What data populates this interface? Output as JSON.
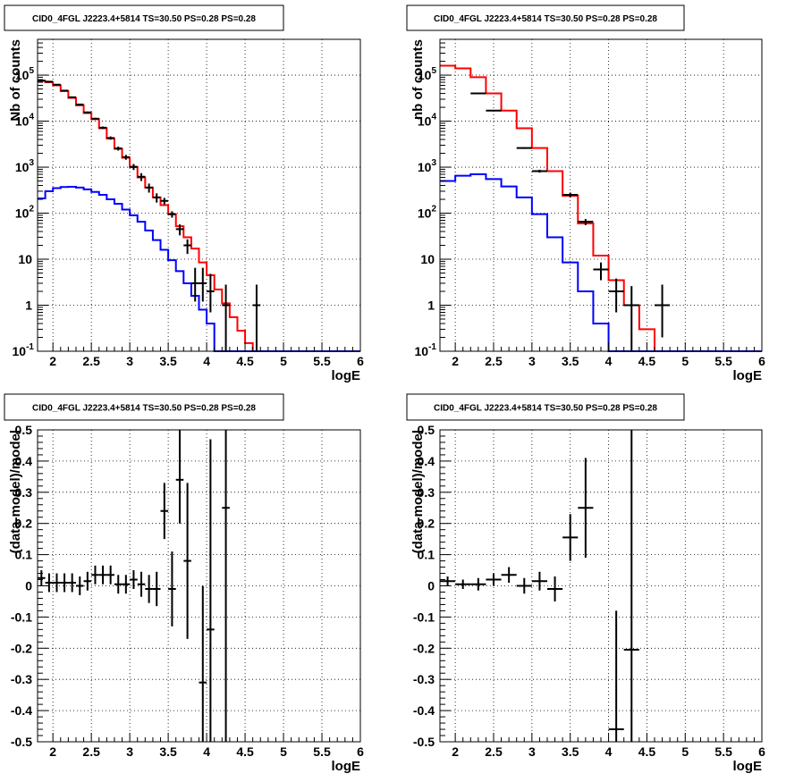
{
  "colors": {
    "model": "#ff0000",
    "component": "#0000ff",
    "data": "#000000",
    "grid": "#000000"
  },
  "chart_data": [
    {
      "type": "line",
      "title": "CID0_4FGL J2223.4+5814 TS=30.50 PS=0.28 PS=0.28",
      "xlabel": "logE",
      "ylabel": "Nb of counts",
      "xlim": [
        1.8,
        6.0
      ],
      "ylim": [
        0.1,
        600000
      ],
      "yscale": "log",
      "grid": true,
      "x_ticks": [
        "2",
        "2.5",
        "3",
        "3.5",
        "4",
        "4.5",
        "5",
        "5.5",
        "6"
      ],
      "y_ticks": [
        "10^-1",
        "1",
        "10",
        "10^2",
        "10^3",
        "10^4",
        "10^5"
      ],
      "bin_edges": [
        1.8,
        1.9,
        2.0,
        2.1,
        2.2,
        2.3,
        2.4,
        2.5,
        2.6,
        2.7,
        2.8,
        2.9,
        3.0,
        3.1,
        3.2,
        3.3,
        3.4,
        3.5,
        3.6,
        3.7,
        3.8,
        3.9,
        4.0,
        4.1,
        4.2,
        4.3,
        4.4,
        4.5,
        4.6,
        4.7,
        4.8,
        4.9,
        5.0,
        5.1,
        5.2,
        5.3,
        5.4,
        5.5,
        5.6,
        5.7,
        5.8,
        5.9,
        6.0
      ],
      "series": [
        {
          "values": [
            75000,
            70000,
            60000,
            45000,
            32000,
            22000,
            15000,
            11000,
            7000,
            4200,
            2500,
            1600,
            1000,
            600,
            360,
            220,
            150,
            95,
            52,
            30,
            17,
            8.5,
            4.5,
            2.2,
            1.1,
            0.55,
            0.28,
            0.15,
            0.1,
            0.1,
            0.1,
            0.1,
            0.1,
            0.1,
            0.1,
            0.1,
            0.1,
            0.1,
            0.1,
            0.1,
            0.1,
            0.1
          ]
        },
        {
          "values": [
            210,
            300,
            350,
            370,
            375,
            360,
            330,
            290,
            250,
            200,
            160,
            120,
            90,
            65,
            42,
            26,
            16,
            9.5,
            5.5,
            3,
            1.6,
            0.8,
            0.4,
            0.1,
            0.1,
            0.1,
            0.1,
            0.1,
            0.1,
            0.1,
            0.1,
            0.1,
            0.1,
            0.1,
            0.1,
            0.1,
            0.1,
            0.1,
            0.1,
            0.1,
            0.1,
            0.1
          ]
        }
      ],
      "points": [
        {
          "x": 1.85,
          "y": 76000,
          "yerr": [
            1500,
            1500
          ]
        },
        {
          "x": 1.95,
          "y": 72000,
          "yerr": [
            1400,
            1400
          ]
        },
        {
          "x": 2.05,
          "y": 62000,
          "yerr": [
            1300,
            1300
          ]
        },
        {
          "x": 2.15,
          "y": 46000,
          "yerr": [
            1100,
            1100
          ]
        },
        {
          "x": 2.25,
          "y": 33000,
          "yerr": [
            900,
            900
          ]
        },
        {
          "x": 2.35,
          "y": 23000,
          "yerr": [
            800,
            800
          ]
        },
        {
          "x": 2.45,
          "y": 15500,
          "yerr": [
            650,
            650
          ]
        },
        {
          "x": 2.55,
          "y": 11300,
          "yerr": [
            550,
            550
          ]
        },
        {
          "x": 2.65,
          "y": 7200,
          "yerr": [
            450,
            450
          ]
        },
        {
          "x": 2.75,
          "y": 4300,
          "yerr": [
            350,
            350
          ]
        },
        {
          "x": 2.85,
          "y": 2550,
          "yerr": [
            250,
            250
          ]
        },
        {
          "x": 2.95,
          "y": 1650,
          "yerr": [
            200,
            200
          ]
        },
        {
          "x": 3.05,
          "y": 1020,
          "yerr": [
            150,
            150
          ]
        },
        {
          "x": 3.15,
          "y": 620,
          "yerr": [
            120,
            120
          ]
        },
        {
          "x": 3.25,
          "y": 360,
          "yerr": [
            80,
            80
          ]
        },
        {
          "x": 3.35,
          "y": 220,
          "yerr": [
            50,
            50
          ]
        },
        {
          "x": 3.45,
          "y": 185,
          "yerr": [
            30,
            30
          ]
        },
        {
          "x": 3.55,
          "y": 95,
          "yerr": [
            15,
            15
          ]
        },
        {
          "x": 3.65,
          "y": 45,
          "yerr": [
            12,
            12
          ]
        },
        {
          "x": 3.75,
          "y": 20,
          "yerr": [
            7,
            7
          ]
        },
        {
          "x": 3.85,
          "y": 3,
          "yerr": [
            1.8,
            3.5
          ]
        },
        {
          "x": 3.95,
          "y": 3,
          "yerr": [
            1.8,
            3.5
          ]
        },
        {
          "x": 4.05,
          "y": 2,
          "yerr": [
            1.3,
            2.8
          ]
        },
        {
          "x": 4.25,
          "y": 1,
          "yerr": [
            0.9,
            1.8
          ]
        },
        {
          "x": 4.65,
          "y": 1,
          "yerr": [
            0.9,
            1.8
          ]
        }
      ]
    },
    {
      "type": "line",
      "title": "CID0_4FGL J2223.4+5814 TS=30.50 PS=0.28 PS=0.28",
      "xlabel": "logE",
      "ylabel": "nb of counts",
      "xlim": [
        1.8,
        6.0
      ],
      "ylim": [
        0.1,
        600000
      ],
      "yscale": "log",
      "grid": true,
      "x_ticks": [
        "2",
        "2.5",
        "3",
        "3.5",
        "4",
        "4.5",
        "5",
        "5.5",
        "6"
      ],
      "y_ticks": [
        "10^-1",
        "1",
        "10",
        "10^2",
        "10^3",
        "10^4",
        "10^5"
      ],
      "bin_edges": [
        1.8,
        2.0,
        2.2,
        2.4,
        2.6,
        2.8,
        3.0,
        3.2,
        3.4,
        3.6,
        3.8,
        4.0,
        4.2,
        4.4,
        4.6,
        4.8,
        5.0,
        5.2,
        5.4,
        5.6,
        5.8,
        6.0
      ],
      "series": [
        {
          "values": [
            160000,
            140000,
            90000,
            40000,
            17000,
            7000,
            2600,
            820,
            240,
            60,
            12,
            3.5,
            1,
            0.3,
            0.1,
            0.1,
            0.1,
            0.1,
            0.1,
            0.1,
            0.1
          ]
        },
        {
          "values": [
            500,
            650,
            700,
            550,
            380,
            220,
            95,
            30,
            8.5,
            2,
            0.4,
            0.1,
            0.1,
            0.1,
            0.1,
            0.1,
            0.1,
            0.1,
            0.1,
            0.1,
            0.1
          ]
        }
      ],
      "points": [
        {
          "x": 2.3,
          "y": 40000,
          "yerr": [
            500,
            500
          ]
        },
        {
          "x": 2.5,
          "y": 17000,
          "yerr": [
            300,
            300
          ]
        },
        {
          "x": 2.9,
          "y": 2600,
          "yerr": [
            100,
            100
          ]
        },
        {
          "x": 3.1,
          "y": 820,
          "yerr": [
            60,
            60
          ]
        },
        {
          "x": 3.5,
          "y": 250,
          "yerr": [
            30,
            30
          ]
        },
        {
          "x": 3.7,
          "y": 65,
          "yerr": [
            10,
            10
          ]
        },
        {
          "x": 3.9,
          "y": 6,
          "yerr": [
            2.5,
            2.5
          ]
        },
        {
          "x": 4.1,
          "y": 2,
          "yerr": [
            1.3,
            1.8
          ]
        },
        {
          "x": 4.3,
          "y": 1,
          "yerr": [
            0.9,
            1.6
          ]
        },
        {
          "x": 4.7,
          "y": 1,
          "yerr": [
            0.8,
            1.8
          ]
        }
      ]
    },
    {
      "type": "scatter",
      "title": "CID0_4FGL J2223.4+5814 TS=30.50 PS=0.28 PS=0.28",
      "xlabel": "logE",
      "ylabel": "(data-model)/model",
      "xlim": [
        1.8,
        6.0
      ],
      "ylim": [
        -0.5,
        0.5
      ],
      "grid": true,
      "x_ticks": [
        "2",
        "2.5",
        "3",
        "3.5",
        "4",
        "4.5",
        "5",
        "5.5",
        "6"
      ],
      "y_ticks": [
        "-0.5",
        "-0.4",
        "-0.3",
        "-0.2",
        "-0.1",
        "0",
        "0.1",
        "0.2",
        "0.3",
        "0.4",
        "0.5"
      ],
      "points": [
        {
          "x": 1.85,
          "y": 0.025,
          "yerr": [
            0.025,
            0.025
          ],
          "xerr": 0.05
        },
        {
          "x": 1.95,
          "y": 0.01,
          "yerr": [
            0.03,
            0.03
          ],
          "xerr": 0.05
        },
        {
          "x": 2.05,
          "y": 0.01,
          "yerr": [
            0.03,
            0.03
          ],
          "xerr": 0.05
        },
        {
          "x": 2.15,
          "y": 0.01,
          "yerr": [
            0.03,
            0.03
          ],
          "xerr": 0.05
        },
        {
          "x": 2.25,
          "y": 0.01,
          "yerr": [
            0.03,
            0.03
          ],
          "xerr": 0.05
        },
        {
          "x": 2.35,
          "y": 0.0,
          "yerr": [
            0.03,
            0.03
          ],
          "xerr": 0.05
        },
        {
          "x": 2.45,
          "y": 0.015,
          "yerr": [
            0.03,
            0.03
          ],
          "xerr": 0.05
        },
        {
          "x": 2.55,
          "y": 0.035,
          "yerr": [
            0.03,
            0.03
          ],
          "xerr": 0.05
        },
        {
          "x": 2.65,
          "y": 0.035,
          "yerr": [
            0.03,
            0.03
          ],
          "xerr": 0.05
        },
        {
          "x": 2.75,
          "y": 0.035,
          "yerr": [
            0.03,
            0.03
          ],
          "xerr": 0.05
        },
        {
          "x": 2.85,
          "y": 0.005,
          "yerr": [
            0.03,
            0.03
          ],
          "xerr": 0.05
        },
        {
          "x": 2.95,
          "y": 0.005,
          "yerr": [
            0.03,
            0.03
          ],
          "xerr": 0.05
        },
        {
          "x": 3.05,
          "y": 0.02,
          "yerr": [
            0.03,
            0.03
          ],
          "xerr": 0.05
        },
        {
          "x": 3.15,
          "y": 0.005,
          "yerr": [
            0.04,
            0.04
          ],
          "xerr": 0.05
        },
        {
          "x": 3.25,
          "y": -0.01,
          "yerr": [
            0.045,
            0.045
          ],
          "xerr": 0.05
        },
        {
          "x": 3.35,
          "y": -0.01,
          "yerr": [
            0.055,
            0.055
          ],
          "xerr": 0.05
        },
        {
          "x": 3.45,
          "y": 0.24,
          "yerr": [
            0.09,
            0.09
          ],
          "xerr": 0.05
        },
        {
          "x": 3.55,
          "y": -0.01,
          "yerr": [
            0.12,
            0.12
          ],
          "xerr": 0.05
        },
        {
          "x": 3.65,
          "y": 0.34,
          "yerr": [
            0.14,
            0.16
          ],
          "xerr": 0.05
        },
        {
          "x": 3.75,
          "y": 0.08,
          "yerr": [
            0.25,
            0.25
          ],
          "xerr": 0.05
        },
        {
          "x": 3.95,
          "y": -0.31,
          "yerr": [
            0.25,
            0.31
          ],
          "xerr": 0.05
        },
        {
          "x": 4.05,
          "y": -0.14,
          "yerr": [
            0.36,
            0.61
          ],
          "xerr": 0.05
        },
        {
          "x": 4.25,
          "y": 0.25,
          "yerr": [
            0.75,
            0.75
          ],
          "xerr": 0.05
        }
      ]
    },
    {
      "type": "scatter",
      "title": "CID0_4FGL J2223.4+5814 TS=30.50 PS=0.28 PS=0.28",
      "xlabel": "logE",
      "ylabel": "(data-model)/model",
      "xlim": [
        1.8,
        6.0
      ],
      "ylim": [
        -0.5,
        0.5
      ],
      "grid": true,
      "x_ticks": [
        "2",
        "2.5",
        "3",
        "3.5",
        "4",
        "4.5",
        "5",
        "5.5",
        "6"
      ],
      "y_ticks": [
        "-0.5",
        "-0.4",
        "-0.3",
        "-0.2",
        "-0.1",
        "0",
        "0.1",
        "0.2",
        "0.3",
        "0.4",
        "0.5"
      ],
      "points": [
        {
          "x": 1.9,
          "y": 0.015,
          "yerr": [
            0.015,
            0.015
          ],
          "xerr": 0.1
        },
        {
          "x": 2.1,
          "y": 0.005,
          "yerr": [
            0.015,
            0.015
          ],
          "xerr": 0.1
        },
        {
          "x": 2.3,
          "y": 0.005,
          "yerr": [
            0.02,
            0.02
          ],
          "xerr": 0.1
        },
        {
          "x": 2.5,
          "y": 0.02,
          "yerr": [
            0.02,
            0.02
          ],
          "xerr": 0.1
        },
        {
          "x": 2.7,
          "y": 0.035,
          "yerr": [
            0.025,
            0.025
          ],
          "xerr": 0.1
        },
        {
          "x": 2.9,
          "y": 0.0,
          "yerr": [
            0.025,
            0.025
          ],
          "xerr": 0.1
        },
        {
          "x": 3.1,
          "y": 0.015,
          "yerr": [
            0.03,
            0.03
          ],
          "xerr": 0.1
        },
        {
          "x": 3.3,
          "y": -0.01,
          "yerr": [
            0.04,
            0.04
          ],
          "xerr": 0.1
        },
        {
          "x": 3.5,
          "y": 0.155,
          "yerr": [
            0.075,
            0.075
          ],
          "xerr": 0.1
        },
        {
          "x": 3.7,
          "y": 0.25,
          "yerr": [
            0.16,
            0.16
          ],
          "xerr": 0.1
        },
        {
          "x": 4.1,
          "y": -0.46,
          "yerr": [
            0.04,
            0.38
          ],
          "xerr": 0.1
        },
        {
          "x": 4.3,
          "y": -0.205,
          "yerr": [
            0.295,
            0.71
          ],
          "xerr": 0.1
        }
      ]
    }
  ]
}
